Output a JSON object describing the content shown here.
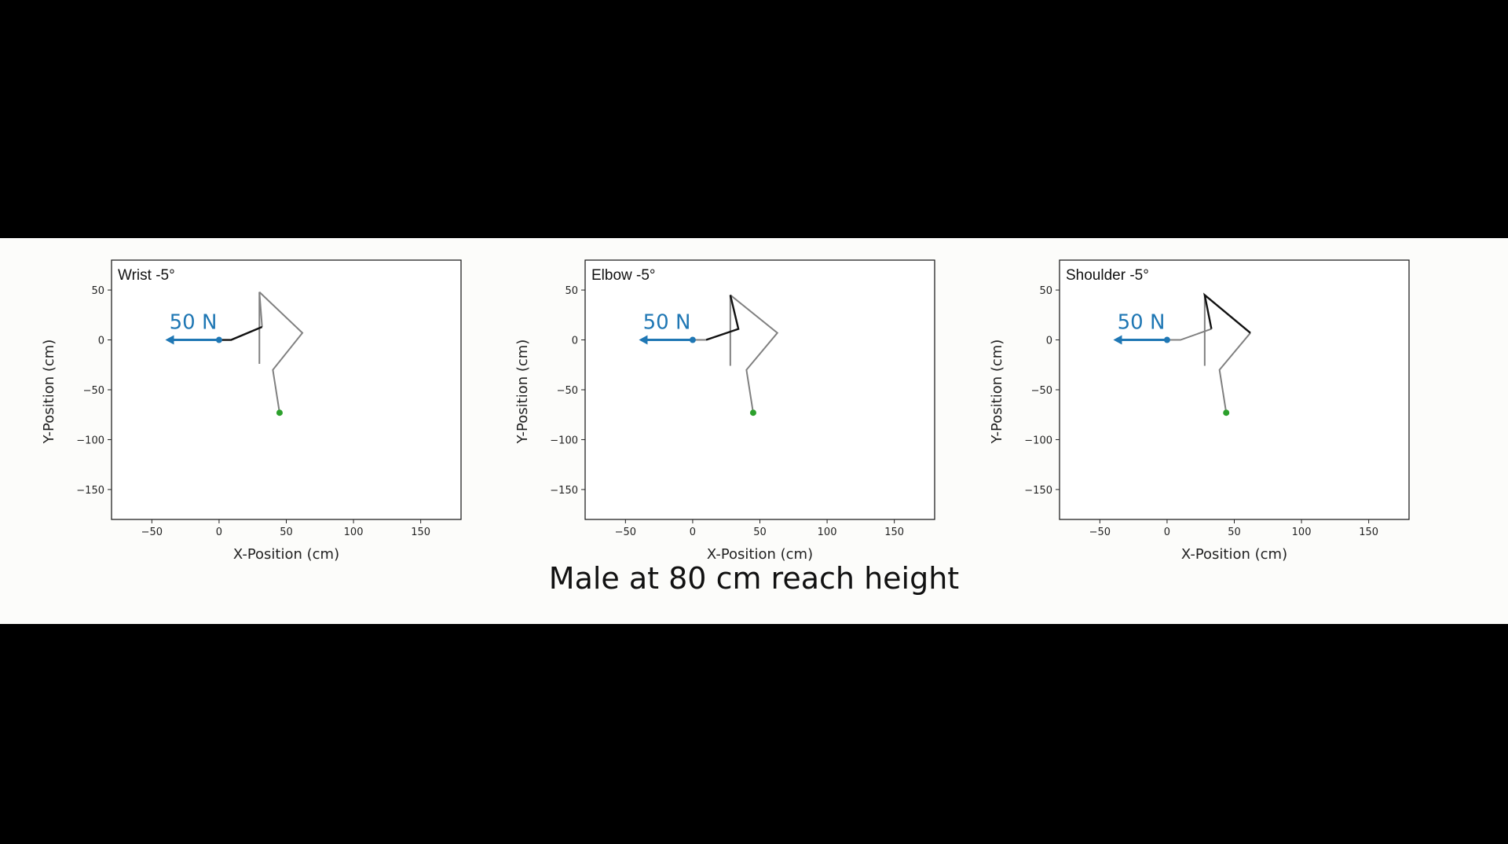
{
  "caption": "Male at 80 cm reach height",
  "colors": {
    "force": "#1f77b4",
    "active_segment": "#111111",
    "posture": "#808080",
    "foot_point": "#2ca02c"
  },
  "chart_data": [
    {
      "type": "line",
      "title": "Wrist -5°",
      "xlabel": "X-Position (cm)",
      "ylabel": "Y-Position (cm)",
      "xlim": [
        -80,
        180
      ],
      "ylim": [
        -180,
        80
      ],
      "xticks": [
        -50,
        0,
        50,
        100,
        150
      ],
      "xtick_labels": [
        "−50",
        "0",
        "50",
        "100",
        "150"
      ],
      "yticks": [
        50,
        0,
        -50,
        -100,
        -150
      ],
      "ytick_labels": [
        "50",
        "0",
        "−50",
        "−100",
        "−150"
      ],
      "grid": false,
      "force": {
        "label": "50 N",
        "from": [
          0,
          0
        ],
        "to": [
          -40,
          0
        ]
      },
      "series": [
        {
          "role": "posture",
          "x": [
            30,
            62,
            40,
            45
          ],
          "y": [
            48,
            7,
            -30,
            -73
          ]
        },
        {
          "role": "posture",
          "x": [
            30,
            30
          ],
          "y": [
            48,
            -24
          ]
        },
        {
          "role": "posture",
          "x": [
            30,
            32
          ],
          "y": [
            48,
            13
          ]
        },
        {
          "role": "active",
          "x": [
            0,
            9,
            32
          ],
          "y": [
            0,
            0,
            13
          ]
        }
      ],
      "points": [
        {
          "role": "hand",
          "x": 0,
          "y": 0
        },
        {
          "role": "foot",
          "x": 45,
          "y": -73
        }
      ]
    },
    {
      "type": "line",
      "title": "Elbow -5°",
      "xlabel": "X-Position (cm)",
      "ylabel": "Y-Position (cm)",
      "xlim": [
        -80,
        180
      ],
      "ylim": [
        -180,
        80
      ],
      "xticks": [
        -50,
        0,
        50,
        100,
        150
      ],
      "xtick_labels": [
        "−50",
        "0",
        "50",
        "100",
        "150"
      ],
      "yticks": [
        50,
        0,
        -50,
        -100,
        -150
      ],
      "ytick_labels": [
        "50",
        "0",
        "−50",
        "−100",
        "−150"
      ],
      "grid": false,
      "force": {
        "label": "50 N",
        "from": [
          0,
          0
        ],
        "to": [
          -40,
          0
        ]
      },
      "series": [
        {
          "role": "posture",
          "x": [
            28,
            63,
            40,
            45
          ],
          "y": [
            45,
            7,
            -30,
            -73
          ]
        },
        {
          "role": "posture",
          "x": [
            28,
            28
          ],
          "y": [
            45,
            -26
          ]
        },
        {
          "role": "posture",
          "x": [
            0,
            10
          ],
          "y": [
            0,
            0
          ]
        },
        {
          "role": "active",
          "x": [
            10,
            34,
            28
          ],
          "y": [
            0,
            11,
            45
          ]
        }
      ],
      "points": [
        {
          "role": "hand",
          "x": 0,
          "y": 0
        },
        {
          "role": "foot",
          "x": 45,
          "y": -73
        }
      ]
    },
    {
      "type": "line",
      "title": "Shoulder -5°",
      "xlabel": "X-Position (cm)",
      "ylabel": "Y-Position (cm)",
      "xlim": [
        -80,
        180
      ],
      "ylim": [
        -180,
        80
      ],
      "xticks": [
        -50,
        0,
        50,
        100,
        150
      ],
      "xtick_labels": [
        "−50",
        "0",
        "50",
        "100",
        "150"
      ],
      "yticks": [
        50,
        0,
        -50,
        -100,
        -150
      ],
      "ytick_labels": [
        "50",
        "0",
        "−50",
        "−100",
        "−150"
      ],
      "grid": false,
      "force": {
        "label": "50 N",
        "from": [
          0,
          0
        ],
        "to": [
          -40,
          0
        ]
      },
      "series": [
        {
          "role": "posture",
          "x": [
            62,
            39,
            44
          ],
          "y": [
            7,
            -30,
            -73
          ]
        },
        {
          "role": "posture",
          "x": [
            28,
            28
          ],
          "y": [
            45,
            -26
          ]
        },
        {
          "role": "posture",
          "x": [
            0,
            10,
            33
          ],
          "y": [
            0,
            0,
            11
          ]
        },
        {
          "role": "active",
          "x": [
            33,
            28,
            62
          ],
          "y": [
            11,
            45,
            7
          ]
        }
      ],
      "points": [
        {
          "role": "hand",
          "x": 0,
          "y": 0
        },
        {
          "role": "foot",
          "x": 44,
          "y": -73
        }
      ]
    }
  ]
}
